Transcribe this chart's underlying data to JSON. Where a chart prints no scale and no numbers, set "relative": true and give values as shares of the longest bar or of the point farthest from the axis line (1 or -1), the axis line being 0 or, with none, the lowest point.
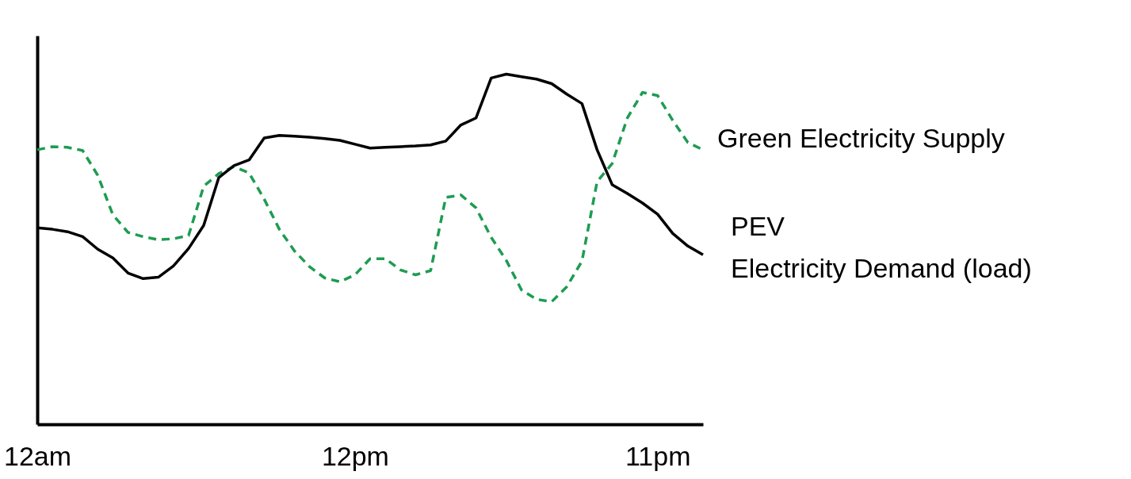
{
  "chart_data": {
    "type": "line",
    "relative": true,
    "grid": false,
    "marker": "none",
    "categories": [
      "12am",
      null,
      null,
      null,
      null,
      null,
      null,
      null,
      null,
      null,
      null,
      null,
      null,
      null,
      null,
      null,
      null,
      null,
      null,
      null,
      null,
      "12pm",
      null,
      null,
      null,
      null,
      null,
      null,
      null,
      null,
      null,
      null,
      null,
      null,
      null,
      null,
      null,
      null,
      null,
      null,
      null,
      "11pm",
      null,
      null,
      null
    ],
    "series": [
      {
        "name": "Green Electricity Supply",
        "color": "#1e9c52",
        "line_style": "dashed",
        "values": [
          0.784,
          0.793,
          0.791,
          0.782,
          0.711,
          0.598,
          0.548,
          0.536,
          0.527,
          0.53,
          0.539,
          0.68,
          0.716,
          0.736,
          0.718,
          0.643,
          0.557,
          0.495,
          0.45,
          0.418,
          0.407,
          0.427,
          0.473,
          0.473,
          0.441,
          0.427,
          0.439,
          0.648,
          0.655,
          0.618,
          0.534,
          0.468,
          0.384,
          0.357,
          0.35,
          0.393,
          0.466,
          0.693,
          0.745,
          0.875,
          0.948,
          0.939,
          0.868,
          0.805,
          0.784
        ]
      },
      {
        "name": "PEV Electricity Demand (load)",
        "color": "#000000",
        "line_style": "solid",
        "values": [
          0.561,
          0.557,
          0.55,
          0.536,
          0.5,
          0.475,
          0.432,
          0.416,
          0.42,
          0.452,
          0.502,
          0.568,
          0.705,
          0.739,
          0.755,
          0.818,
          0.825,
          0.823,
          0.82,
          0.816,
          0.811,
          0.8,
          0.789,
          0.791,
          0.793,
          0.795,
          0.798,
          0.809,
          0.855,
          0.875,
          0.989,
          1,
          0.993,
          0.986,
          0.973,
          0.943,
          0.916,
          0.784,
          0.684,
          0.659,
          0.632,
          0.6,
          0.545,
          0.509,
          0.484
        ]
      }
    ]
  }
}
